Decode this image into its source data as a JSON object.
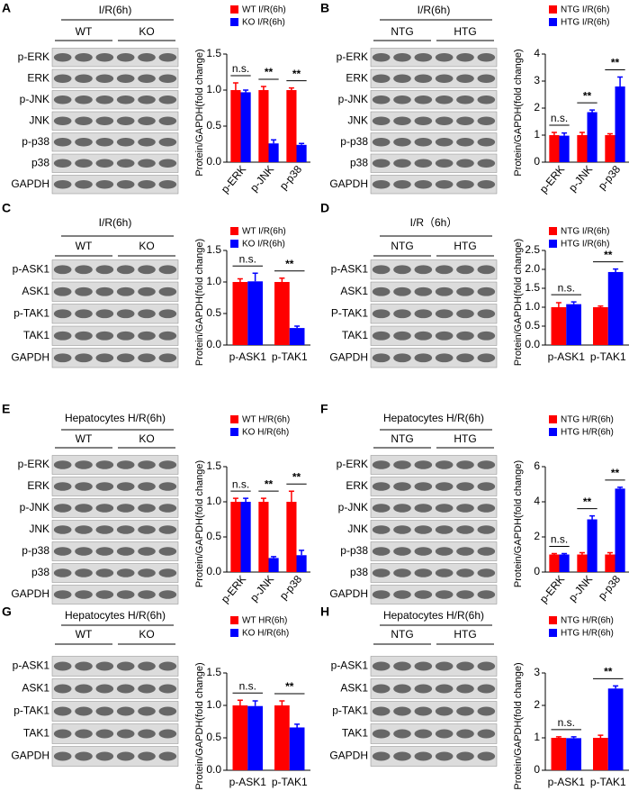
{
  "panels": [
    {
      "label": "A",
      "blot": {
        "title": "I/R(6h)",
        "groups": [
          "WT",
          "KO"
        ],
        "rows": [
          "p-ERK",
          "ERK",
          "p-JNK",
          "JNK",
          "p-p38",
          "p38",
          "GAPDH"
        ]
      }
    },
    {
      "label": "B",
      "blot": {
        "title": "I/R(6h)",
        "groups": [
          "NTG",
          "HTG"
        ],
        "rows": [
          "p-ERK",
          "ERK",
          "p-JNK",
          "JNK",
          "p-p38",
          "p38",
          "GAPDH"
        ]
      }
    },
    {
      "label": "C",
      "blot": {
        "title": "I/R(6h)",
        "groups": [
          "WT",
          "KO"
        ],
        "rows": [
          "p-ASK1",
          "ASK1",
          "p-TAK1",
          "TAK1",
          "GAPDH"
        ]
      }
    },
    {
      "label": "D",
      "blot": {
        "title": "I/R（6h）",
        "groups": [
          "NTG",
          "HTG"
        ],
        "rows": [
          "p-ASK1",
          "ASK1",
          "P-TAK1",
          "TAK1",
          "GAPDH"
        ]
      }
    },
    {
      "label": "E",
      "blot": {
        "title": "Hepatocytes H/R(6h)",
        "groups": [
          "WT",
          "KO"
        ],
        "rows": [
          "p-ERK",
          "ERK",
          "p-JNK",
          "JNK",
          "p-p38",
          "p38",
          "GAPDH"
        ]
      }
    },
    {
      "label": "F",
      "blot": {
        "title": "Hepatocytes H/R(6h)",
        "groups": [
          "NTG",
          "HTG"
        ],
        "rows": [
          "p-ERK",
          "ERK",
          "p-JNK",
          "JNK",
          "p-p38",
          "p38",
          "GAPDH"
        ]
      }
    },
    {
      "label": "G",
      "blot": {
        "title": "Hepatocytes H/R(6h)",
        "groups": [
          "WT",
          "KO"
        ],
        "rows": [
          "p-ASK1",
          "ASK1",
          "p-TAK1",
          "TAK1",
          "GAPDH"
        ]
      }
    },
    {
      "label": "H",
      "blot": {
        "title": "Hepatocytes H/R(6h)",
        "groups": [
          "NTG",
          "HTG"
        ],
        "rows": [
          "p-ASK1",
          "ASK1",
          "p-TAK1",
          "TAK1",
          "GAPDH"
        ]
      }
    }
  ],
  "chart_data": [
    {
      "type": "bar",
      "ylabel": "Protein/GAPDH(fold change)",
      "categories": [
        "p-ERK",
        "p-JNK",
        "p-p38"
      ],
      "series": [
        {
          "name": "WT I/R(6h)",
          "color": "#ff0000",
          "values": [
            1,
            1,
            1
          ],
          "errors": [
            0.1,
            0.05,
            0.03
          ]
        },
        {
          "name": "KO I/R(6h)",
          "color": "#0000ff",
          "values": [
            0.97,
            0.26,
            0.24
          ],
          "errors": [
            0.03,
            0.05,
            0.02
          ]
        }
      ],
      "ylim": [
        0,
        1.5
      ],
      "yticks": [
        {
          "value": 0,
          "label": "0.0"
        },
        0.5,
        {
          "value": 1,
          "label": "1.0"
        },
        1.5
      ],
      "annotations": [
        "n.s.",
        "**",
        "**"
      ]
    },
    {
      "type": "bar",
      "ylabel": "Protein/GAPDH(fold change)",
      "categories": [
        "p-ERK",
        "p-JNK",
        "p-p38"
      ],
      "series": [
        {
          "name": "NTG I/R(6h)",
          "color": "#ff0000",
          "values": [
            1,
            1,
            1
          ],
          "errors": [
            0.1,
            0.1,
            0.05
          ]
        },
        {
          "name": "HTG I/R(6h)",
          "color": "#0000ff",
          "values": [
            0.98,
            1.85,
            2.8
          ],
          "errors": [
            0.1,
            0.08,
            0.35
          ]
        }
      ],
      "ylim": [
        0,
        4
      ],
      "yticks": [
        0,
        1,
        2,
        3,
        4
      ],
      "annotations": [
        "n.s.",
        "**",
        "**"
      ]
    },
    {
      "type": "bar",
      "ylabel": "Protein/GAPDH(fold change)",
      "categories": [
        "p-ASK1",
        "p-TAK1"
      ],
      "series": [
        {
          "name": "WT I/R(6h)",
          "color": "#ff0000",
          "values": [
            1,
            1
          ],
          "errors": [
            0.05,
            0.06
          ]
        },
        {
          "name": "KO I/R(6h)",
          "color": "#0000ff",
          "values": [
            1.01,
            0.27
          ],
          "errors": [
            0.13,
            0.03
          ]
        }
      ],
      "ylim": [
        0,
        1.5
      ],
      "yticks": [
        {
          "value": 0,
          "label": "0.0"
        },
        0.5,
        {
          "value": 1,
          "label": "1.0"
        },
        1.5
      ],
      "annotations": [
        "n.s.",
        "**"
      ]
    },
    {
      "type": "bar",
      "ylabel": "Protein/GAPDH(fold change)",
      "categories": [
        "p-ASK1",
        "p-TAK1"
      ],
      "series": [
        {
          "name": "NTG I/R(6h)",
          "color": "#ff0000",
          "values": [
            1,
            1
          ],
          "errors": [
            0.12,
            0.03
          ]
        },
        {
          "name": "HTG I/R(6h)",
          "color": "#0000ff",
          "values": [
            1.08,
            1.93
          ],
          "errors": [
            0.06,
            0.08
          ]
        }
      ],
      "ylim": [
        0,
        2.5
      ],
      "yticks": [
        {
          "value": 0,
          "label": "0.0"
        },
        0.5,
        {
          "value": 1,
          "label": "1.0"
        },
        1.5,
        {
          "value": 2,
          "label": "2.0"
        },
        2.5
      ],
      "annotations": [
        "n.s.",
        "**"
      ]
    },
    {
      "type": "bar",
      "ylabel": "Protein/GAPDH(fold change)",
      "categories": [
        "p-ERK",
        "p-JNK",
        "p-p38"
      ],
      "series": [
        {
          "name": "WT H/R(6h)",
          "color": "#ff0000",
          "values": [
            1,
            1,
            1
          ],
          "errors": [
            0.05,
            0.05,
            0.15
          ]
        },
        {
          "name": "KO H/R(6h)",
          "color": "#0000ff",
          "values": [
            1,
            0.2,
            0.24
          ],
          "errors": [
            0.05,
            0.02,
            0.07
          ]
        }
      ],
      "ylim": [
        0,
        1.5
      ],
      "yticks": [
        {
          "value": 0,
          "label": "0.0"
        },
        0.5,
        {
          "value": 1,
          "label": "1.0"
        },
        1.5
      ],
      "annotations": [
        "n.s.",
        "**",
        "**"
      ]
    },
    {
      "type": "bar",
      "ylabel": "Protein/GAPDH(fold change)",
      "categories": [
        "p-ERK",
        "p-JNK",
        "p-p38"
      ],
      "series": [
        {
          "name": "NTG H/R(6h)",
          "color": "#ff0000",
          "values": [
            1,
            1,
            1
          ],
          "errors": [
            0.05,
            0.1,
            0.1
          ]
        },
        {
          "name": "HTG H/R(6h)",
          "color": "#0000ff",
          "values": [
            1,
            3,
            4.75
          ],
          "errors": [
            0.05,
            0.2,
            0.08
          ]
        }
      ],
      "ylim": [
        0,
        6
      ],
      "yticks": [
        0,
        2,
        4,
        6
      ],
      "annotations": [
        "n.s.",
        "**",
        "**"
      ]
    },
    {
      "type": "bar",
      "ylabel": "Protein/GAPDH(fold change)",
      "categories": [
        "p-ASK1",
        "p-TAK1"
      ],
      "series": [
        {
          "name": "WT HR(6h)",
          "color": "#ff0000",
          "values": [
            1,
            1
          ],
          "errors": [
            0.08,
            0.07
          ]
        },
        {
          "name": "KO H/R(6h)",
          "color": "#0000ff",
          "values": [
            0.99,
            0.66
          ],
          "errors": [
            0.08,
            0.05
          ]
        }
      ],
      "ylim": [
        0,
        1.5
      ],
      "yticks": [
        {
          "value": 0,
          "label": "0.0"
        },
        0.5,
        {
          "value": 1,
          "label": "1.0"
        },
        1.5
      ],
      "annotations": [
        "n.s.",
        "**"
      ]
    },
    {
      "type": "bar",
      "ylabel": "Protein/GAPDH(fold change)",
      "categories": [
        "p-ASK1",
        "p-TAK1"
      ],
      "series": [
        {
          "name": "NTG H/R(6h)",
          "color": "#ff0000",
          "values": [
            1,
            1
          ],
          "errors": [
            0.03,
            0.08
          ]
        },
        {
          "name": "HTG H/R(6h)",
          "color": "#0000ff",
          "values": [
            0.99,
            2.52
          ],
          "errors": [
            0.04,
            0.08
          ]
        }
      ],
      "ylim": [
        0,
        3
      ],
      "yticks": [
        0,
        1,
        2,
        3
      ],
      "annotations": [
        "n.s.",
        "**"
      ]
    }
  ]
}
